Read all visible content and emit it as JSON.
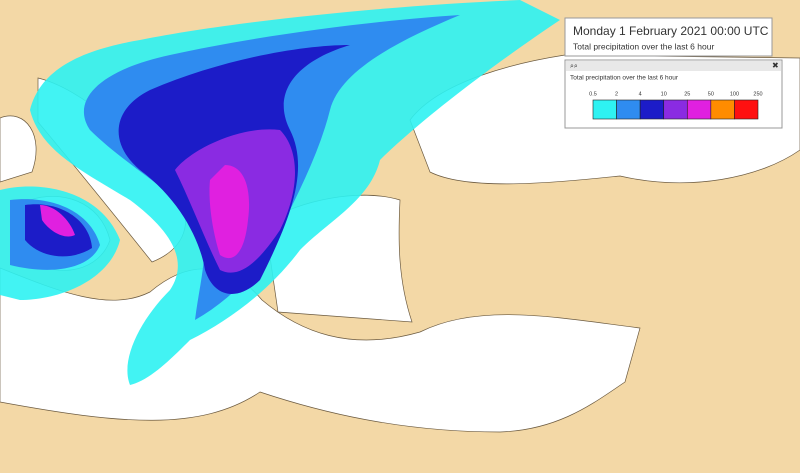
{
  "header": {
    "title": "Monday 1 February 2021 00:00 UTC",
    "subtitle": "Total precipitation over the last 6 hour"
  },
  "legend": {
    "title": "Total precipitation over the last 6 hour",
    "thresholds": [
      0.5,
      2,
      4,
      10,
      25,
      50,
      100,
      250
    ],
    "colors": [
      "#2ef2f2",
      "#2f8cf0",
      "#1c1cc8",
      "#8a2be2",
      "#e020e0",
      "#ff8c00",
      "#ff1010"
    ]
  }
}
